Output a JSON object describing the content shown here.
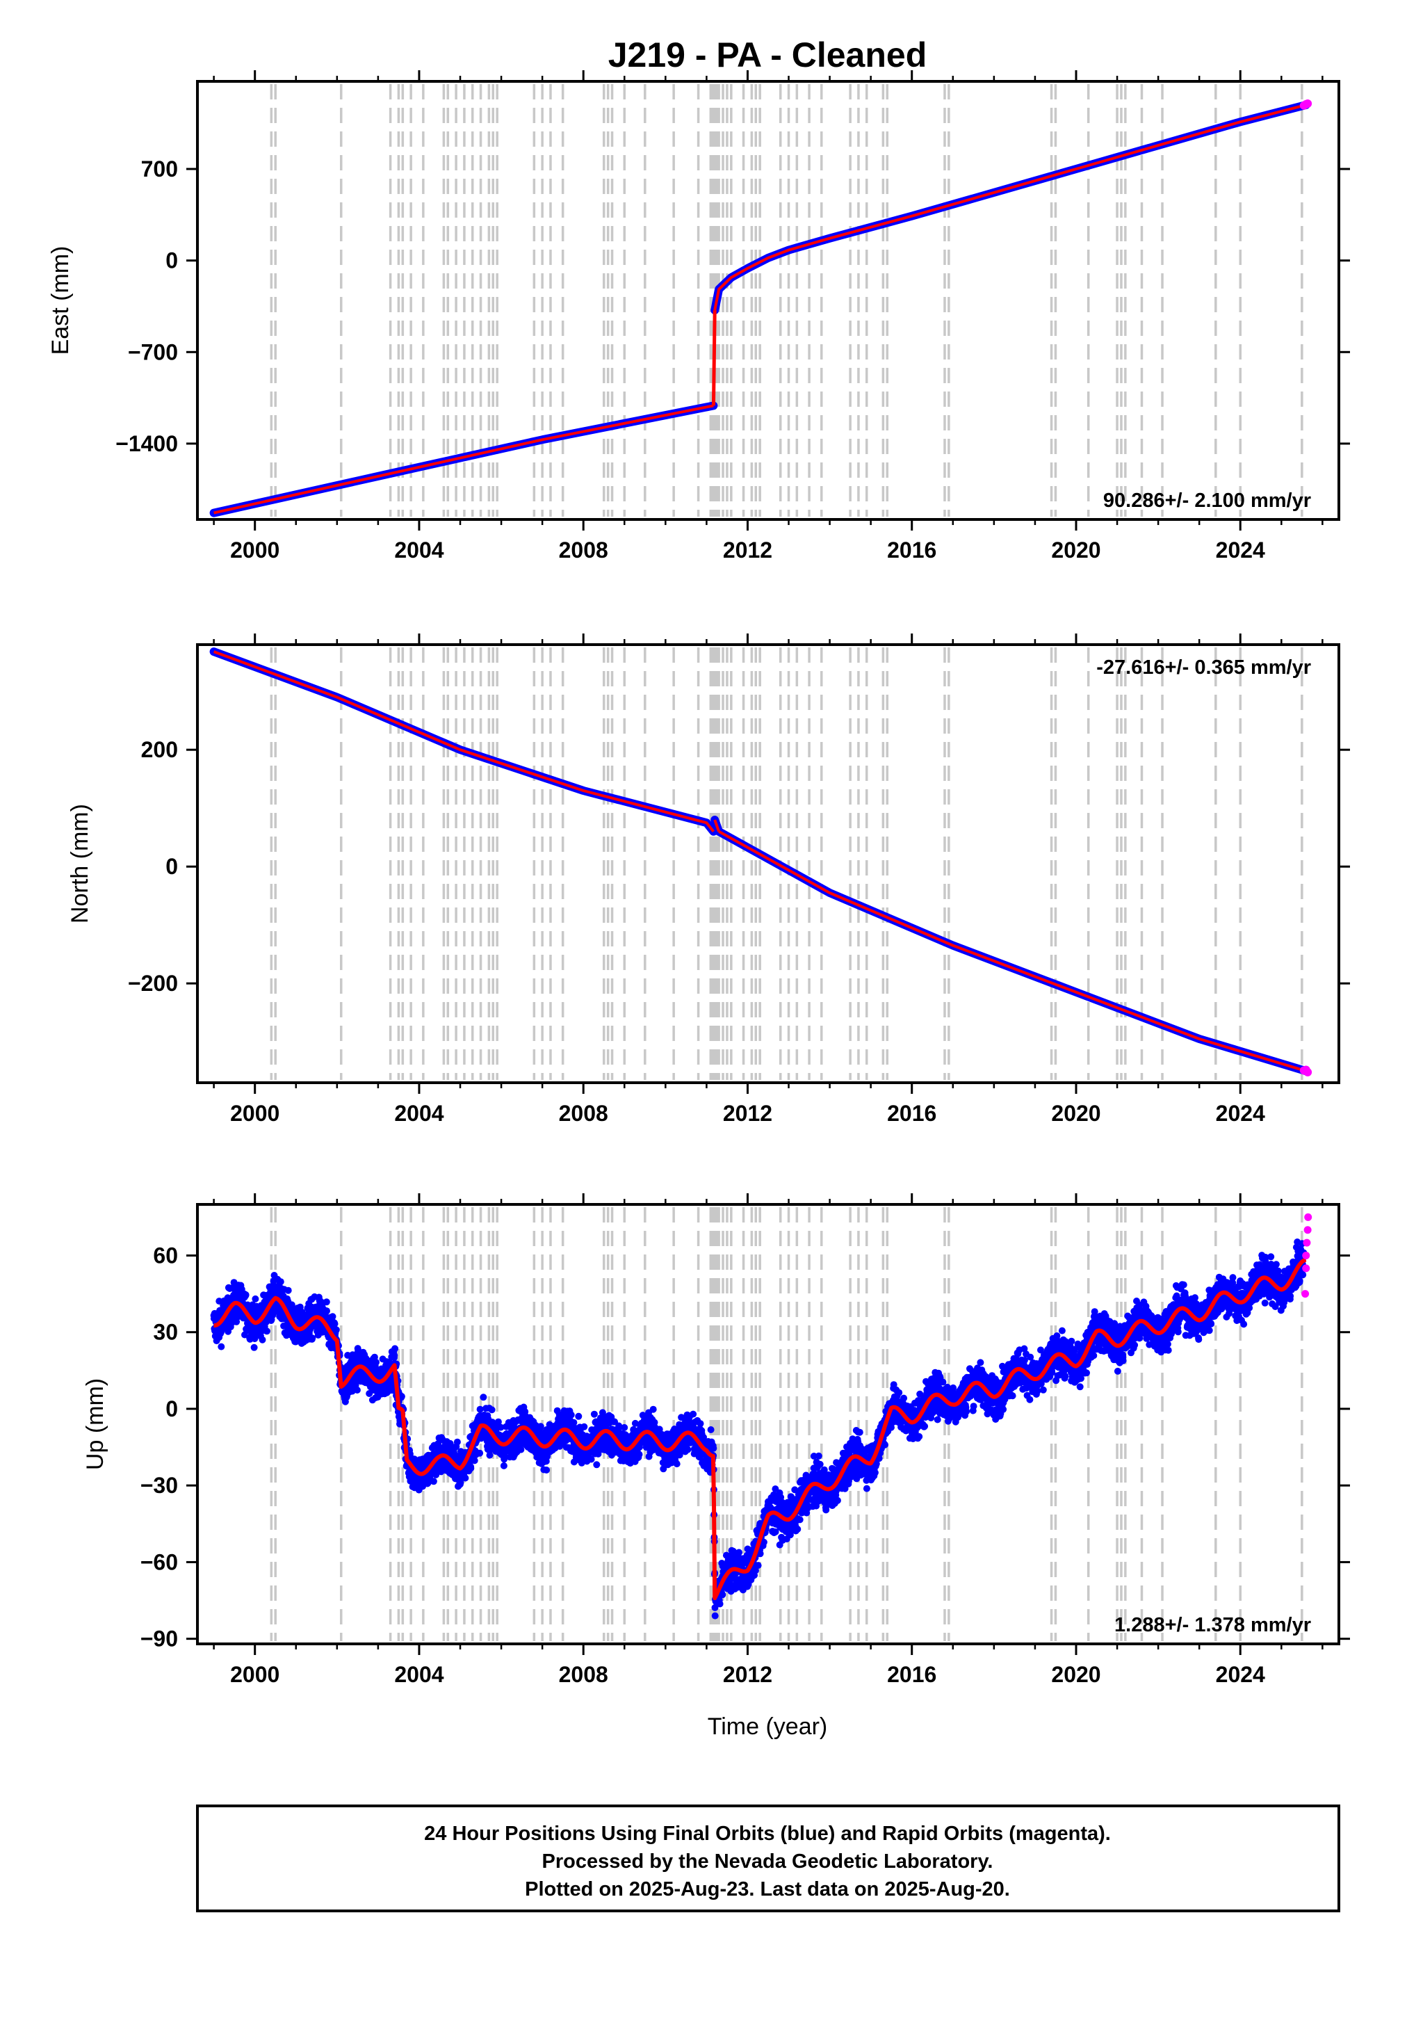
{
  "title": "J219  - PA - Cleaned",
  "x_axis_label": "Time (year)",
  "footer": {
    "line1": "24 Hour Positions Using Final Orbits (blue) and Rapid Orbits (magenta).",
    "line2": "Processed by the Nevada Geodetic Laboratory.",
    "line3": "Plotted on 2025-Aug-23. Last data on 2025-Aug-20."
  },
  "colors": {
    "final_orbits": "#0000ff",
    "rapid_orbits": "#ff00ff",
    "model_fit": "#ff0000",
    "step_lines": "#c8c8c8"
  },
  "chart_data": [
    {
      "type": "scatter",
      "panel": "east",
      "ylabel": "East (mm)",
      "xlim": [
        1998.6,
        2026.4
      ],
      "ylim": [
        -1980,
        1370
      ],
      "x_ticks": [
        "2000",
        "2004",
        "2008",
        "2012",
        "2016",
        "2020",
        "2024"
      ],
      "y_ticks": [
        "700",
        "0",
        "−700",
        "−1400"
      ],
      "y_tick_values": [
        700,
        0,
        -700,
        -1400
      ],
      "rate_label": "90.286+/- 2.100 mm/yr",
      "rate_position": "bottom-right",
      "series": [
        {
          "name": "Final Orbits (blue)",
          "color": "#0000ff",
          "segments": [
            {
              "x": [
                1999.0,
                2003.0,
                2007.0,
                2011.17
              ],
              "y": [
                -1930,
                -1650,
                -1370,
                -1110
              ]
            },
            {
              "x": [
                2011.2,
                2011.3,
                2011.6,
                2012.0,
                2012.5,
                2013.0,
                2014.0,
                2016.0,
                2018.0,
                2020.0,
                2022.0,
                2024.0,
                2025.6
              ],
              "y": [
                -380,
                -220,
                -130,
                -60,
                20,
                80,
                170,
                340,
                520,
                700,
                880,
                1060,
                1190
              ]
            }
          ]
        },
        {
          "name": "Rapid Orbits (magenta)",
          "color": "#ff00ff",
          "points": [
            [
              2025.55,
              1185
            ],
            [
              2025.6,
              1195
            ],
            [
              2025.64,
              1200
            ]
          ]
        }
      ]
    },
    {
      "type": "scatter",
      "panel": "north",
      "ylabel": "North (mm)",
      "xlim": [
        1998.6,
        2026.4
      ],
      "ylim": [
        -370,
        380
      ],
      "x_ticks": [
        "2000",
        "2004",
        "2008",
        "2012",
        "2016",
        "2020",
        "2024"
      ],
      "y_ticks": [
        "200",
        "0",
        "−200"
      ],
      "y_tick_values": [
        200,
        0,
        -200
      ],
      "rate_label": "-27.616+/- 0.365 mm/yr",
      "rate_position": "top-right",
      "series": [
        {
          "name": "Final Orbits (blue)",
          "color": "#0000ff",
          "segments": [
            {
              "x": [
                1999.0,
                2002.0,
                2005.0,
                2008.0,
                2011.0,
                2011.17
              ],
              "y": [
                368,
                290,
                200,
                130,
                75,
                60
              ]
            },
            {
              "x": [
                2011.2,
                2011.3
              ],
              "y": [
                80,
                60
              ]
            },
            {
              "x": [
                2011.3,
                2014.0,
                2017.0,
                2020.0,
                2023.0,
                2025.6
              ],
              "y": [
                60,
                -45,
                -135,
                -215,
                -295,
                -350
              ]
            }
          ]
        },
        {
          "name": "Rapid Orbits (magenta)",
          "color": "#ff00ff",
          "points": [
            [
              2025.55,
              -349
            ],
            [
              2025.6,
              -348
            ],
            [
              2025.64,
              -352
            ]
          ]
        }
      ]
    },
    {
      "type": "scatter",
      "panel": "up",
      "ylabel": "Up (mm)",
      "xlim": [
        1998.6,
        2026.4
      ],
      "ylim": [
        -92,
        80
      ],
      "x_ticks": [
        "2000",
        "2004",
        "2008",
        "2012",
        "2016",
        "2020",
        "2024"
      ],
      "y_ticks": [
        "60",
        "30",
        "0",
        "−30",
        "−60",
        "−90"
      ],
      "y_tick_values": [
        60,
        30,
        0,
        -30,
        -60,
        -90
      ],
      "rate_label": "1.288+/- 1.378 mm/yr",
      "rate_position": "bottom-right",
      "model_fit_knots": [
        [
          1999.0,
          36
        ],
        [
          1999.5,
          38
        ],
        [
          2000.0,
          37
        ],
        [
          2000.5,
          40
        ],
        [
          2001.0,
          35
        ],
        [
          2002.0,
          30
        ],
        [
          2002.1,
          12
        ],
        [
          2003.0,
          14
        ],
        [
          2003.4,
          15
        ],
        [
          2003.5,
          -3
        ],
        [
          2003.6,
          -4
        ],
        [
          2003.7,
          -22
        ],
        [
          2004.5,
          -22
        ],
        [
          2005.0,
          -20
        ],
        [
          2005.5,
          -10
        ],
        [
          2008.0,
          -12
        ],
        [
          2011.0,
          -13
        ],
        [
          2011.17,
          -16
        ],
        [
          2011.2,
          -72
        ],
        [
          2011.5,
          -68
        ],
        [
          2012.0,
          -60
        ],
        [
          2012.5,
          -45
        ],
        [
          2013.0,
          -40
        ],
        [
          2014.0,
          -28
        ],
        [
          2015.0,
          -18
        ],
        [
          2015.5,
          -3
        ],
        [
          2016.0,
          -2
        ],
        [
          2017.0,
          5
        ],
        [
          2018.0,
          8
        ],
        [
          2019.0,
          15
        ],
        [
          2020.0,
          20
        ],
        [
          2020.5,
          27
        ],
        [
          2021.0,
          28
        ],
        [
          2022.0,
          33
        ],
        [
          2023.0,
          38
        ],
        [
          2024.0,
          45
        ],
        [
          2025.0,
          50
        ],
        [
          2025.6,
          55
        ]
      ],
      "series": [
        {
          "name": "Final Orbits (blue)",
          "color": "#0000ff",
          "scatter_mm": 7
        },
        {
          "name": "Rapid Orbits (magenta)",
          "color": "#ff00ff",
          "points": [
            [
              2025.58,
              45
            ],
            [
              2025.6,
              60
            ],
            [
              2025.62,
              65
            ],
            [
              2025.64,
              70
            ],
            [
              2025.65,
              75
            ],
            [
              2025.6,
              55
            ]
          ]
        }
      ]
    }
  ],
  "step_epochs": [
    2000.4,
    2000.5,
    2002.1,
    2003.3,
    2003.5,
    2003.6,
    2003.8,
    2004.1,
    2004.6,
    2004.7,
    2004.9,
    2005.1,
    2005.3,
    2005.5,
    2005.7,
    2005.8,
    2005.9,
    2006.8,
    2007.0,
    2007.2,
    2007.5,
    2008.5,
    2008.6,
    2008.7,
    2009.0,
    2009.5,
    2010.2,
    2010.8,
    2011.1,
    2011.15,
    2011.2,
    2011.25,
    2011.3,
    2011.4,
    2011.5,
    2011.6,
    2011.9,
    2012.1,
    2012.2,
    2012.3,
    2012.8,
    2013.0,
    2013.2,
    2013.5,
    2013.8,
    2014.5,
    2014.7,
    2014.9,
    2015.3,
    2015.4,
    2016.8,
    2016.9,
    2019.4,
    2019.5,
    2020.3,
    2021.0,
    2021.1,
    2021.2,
    2021.6,
    2022.1,
    2023.4,
    2024.0,
    2025.5
  ]
}
